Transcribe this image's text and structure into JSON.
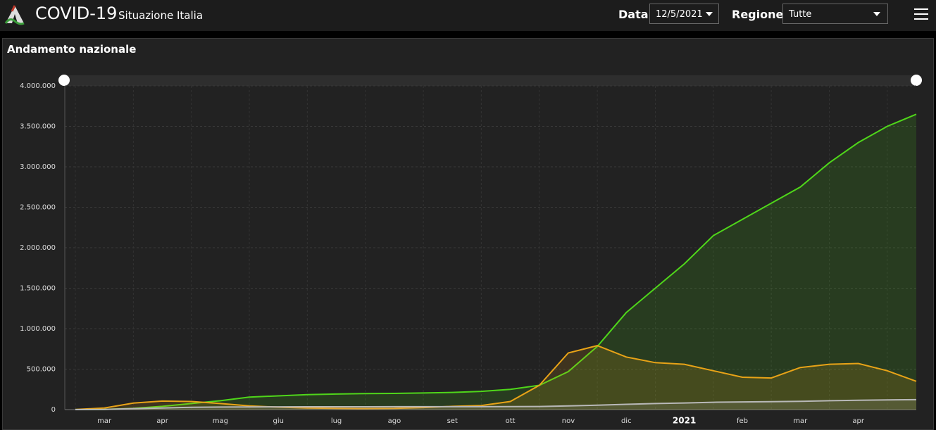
{
  "header": {
    "title": "COVID-19",
    "subtitle": "Situazione Italia",
    "date_label": "Data",
    "date_value": "12/5/2021",
    "region_label": "Regione",
    "region_value": "Tutte"
  },
  "panel": {
    "title": "Andamento nazionale"
  },
  "chart_data": {
    "type": "area",
    "categories": [
      null,
      "mar",
      null,
      "apr",
      null,
      "mag",
      null,
      "giu",
      null,
      "lug",
      null,
      "ago",
      null,
      "set",
      null,
      "ott",
      null,
      "nov",
      null,
      "dic",
      null,
      "2021",
      null,
      "feb",
      null,
      "mar",
      null,
      "apr",
      null,
      null
    ],
    "series": [
      {
        "color": "#4fd61a",
        "values": [
          1000,
          2000,
          15000,
          40000,
          75000,
          110000,
          155000,
          170000,
          185000,
          192000,
          198000,
          200000,
          205000,
          212000,
          225000,
          250000,
          300000,
          470000,
          780000,
          1200000,
          1500000,
          1800000,
          2150000,
          2350000,
          2550000,
          2750000,
          3050000,
          3300000,
          3500000,
          3650000
        ]
      },
      {
        "color": "#e8a317",
        "values": [
          1000,
          20000,
          80000,
          105000,
          100000,
          75000,
          45000,
          30000,
          20000,
          15000,
          13000,
          15000,
          25000,
          40000,
          50000,
          100000,
          300000,
          700000,
          790000,
          650000,
          580000,
          560000,
          480000,
          400000,
          390000,
          520000,
          560000,
          570000,
          480000,
          350000
        ]
      },
      {
        "color": "#b8b8b8",
        "values": [
          0,
          2000,
          12000,
          20000,
          28000,
          31000,
          33000,
          34000,
          35000,
          35000,
          35000,
          35500,
          35500,
          36000,
          36000,
          36500,
          38000,
          45000,
          55000,
          65000,
          75000,
          82000,
          90000,
          95000,
          98000,
          102000,
          110000,
          115000,
          120000,
          123000
        ]
      }
    ],
    "ylim": [
      0,
      4000000
    ],
    "yticks": [
      0,
      {
        "value": 500000,
        "label": "500.000"
      },
      {
        "value": 1000000,
        "label": "1.000.000"
      },
      {
        "value": 1500000,
        "label": "1.500.000"
      },
      {
        "value": 2000000,
        "label": "2.000.000"
      },
      {
        "value": 2500000,
        "label": "2.500.000"
      },
      {
        "value": 3000000,
        "label": "3.000.000"
      },
      {
        "value": 3500000,
        "label": "3.500.000"
      },
      {
        "value": 4000000,
        "label": "4.000.000"
      }
    ],
    "grid": true
  }
}
